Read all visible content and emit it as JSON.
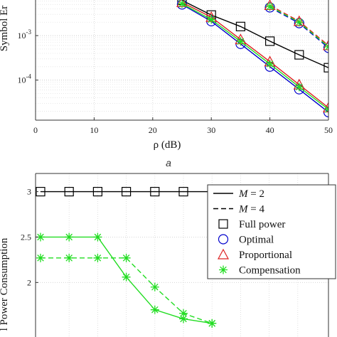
{
  "figure": {
    "caption_a": "a"
  },
  "chart_data": [
    {
      "type": "line",
      "xlabel": "ρ (dB)",
      "ylabel": "Symbol Er",
      "xlim": [
        0,
        50
      ],
      "ylim_log10": [
        -4.9,
        -2.2
      ],
      "yscale": "log",
      "grid": true,
      "x_ticks": [
        "0",
        "10",
        "20",
        "30",
        "40",
        "50"
      ],
      "y_ticks": [
        {
          "value": 0.001,
          "base": "10",
          "exp": "-3"
        },
        {
          "value": 0.0001,
          "base": "10",
          "exp": "-4"
        }
      ],
      "colors": {
        "m2_full": "#000000",
        "m2_opt": "#0000cc",
        "m2_comp": "#22dd22",
        "m2_prop": "#dd2222",
        "m4_opt": "#0000cc",
        "m4_prop": "#dd2222",
        "m4_comp": "#22dd22"
      },
      "series": [
        {
          "line": "solid",
          "color": "#000000",
          "marker": "square",
          "x": [
            25,
            30,
            35,
            40,
            45,
            50
          ],
          "y": [
            0.0062,
            0.0029,
            0.0016,
            0.00075,
            0.00037,
            0.00019
          ]
        },
        {
          "line": "solid",
          "color": "#0000cc",
          "marker": "circle",
          "x": [
            25,
            30,
            35,
            40,
            45,
            50
          ],
          "y": [
            0.005,
            0.0021,
            0.00065,
            0.0002,
            6.2e-05,
            1.9e-05
          ]
        },
        {
          "line": "solid",
          "color": "#dd2222",
          "marker": "triangle",
          "x": [
            25,
            30,
            35,
            40,
            45,
            50
          ],
          "y": [
            0.0056,
            0.0026,
            0.00082,
            0.00026,
            7.9e-05,
            2.4e-05
          ]
        },
        {
          "line": "solid",
          "color": "#22dd22",
          "marker": "star",
          "x": [
            25,
            30,
            35,
            40,
            45,
            50
          ],
          "y": [
            0.0052,
            0.0023,
            0.00074,
            0.00023,
            7e-05,
            2.2e-05
          ]
        },
        {
          "line": "dashed",
          "color": "#0000cc",
          "marker": "circle",
          "x": [
            40,
            45,
            50
          ],
          "y": [
            0.0043,
            0.0019,
            0.00053
          ]
        },
        {
          "line": "dashed",
          "color": "#dd2222",
          "marker": "triangle",
          "x": [
            40,
            45,
            50
          ],
          "y": [
            0.0048,
            0.0021,
            0.0006
          ]
        },
        {
          "line": "dashed",
          "color": "#22dd22",
          "marker": "star",
          "x": [
            40,
            45,
            50
          ],
          "y": [
            0.0045,
            0.002,
            0.00056
          ]
        }
      ]
    },
    {
      "type": "line",
      "xlabel": "",
      "ylabel": "l Power Consumption",
      "xlim": [
        0,
        10
      ],
      "ylim": [
        1.4,
        3.2
      ],
      "grid": true,
      "y_ticks": [
        "3",
        "2.5",
        "2"
      ],
      "legend": {
        "placement": "top-right",
        "entries": [
          {
            "label_base": "M",
            "label_rest": " = 2",
            "style": "solid-line"
          },
          {
            "label_base": "M",
            "label_rest": " = 4",
            "style": "dashed-line"
          },
          {
            "label": "Full power",
            "style": "square"
          },
          {
            "label": "Optimal",
            "style": "circle"
          },
          {
            "label": "Proportional",
            "style": "triangle"
          },
          {
            "label": "Compensation",
            "style": "star"
          }
        ]
      },
      "series": [
        {
          "line": "solid",
          "color": "#000000",
          "marker": "square",
          "x": [
            0,
            1,
            2,
            3,
            4,
            5,
            6,
            7,
            8,
            9,
            10
          ],
          "y": [
            3,
            3,
            3,
            3,
            3,
            3,
            3,
            3,
            3,
            3,
            3
          ]
        },
        {
          "line": "solid",
          "color": "#22dd22",
          "marker": "star",
          "x": [
            0,
            1,
            2,
            3,
            4,
            5,
            6
          ],
          "y": [
            2.5,
            2.5,
            2.5,
            2.06,
            1.7,
            1.6,
            1.55
          ]
        },
        {
          "line": "dashed",
          "color": "#22dd22",
          "marker": "star",
          "x": [
            0,
            1,
            2,
            3,
            4,
            5,
            6
          ],
          "y": [
            2.27,
            2.27,
            2.27,
            2.27,
            1.95,
            1.66,
            1.55
          ]
        }
      ]
    }
  ]
}
